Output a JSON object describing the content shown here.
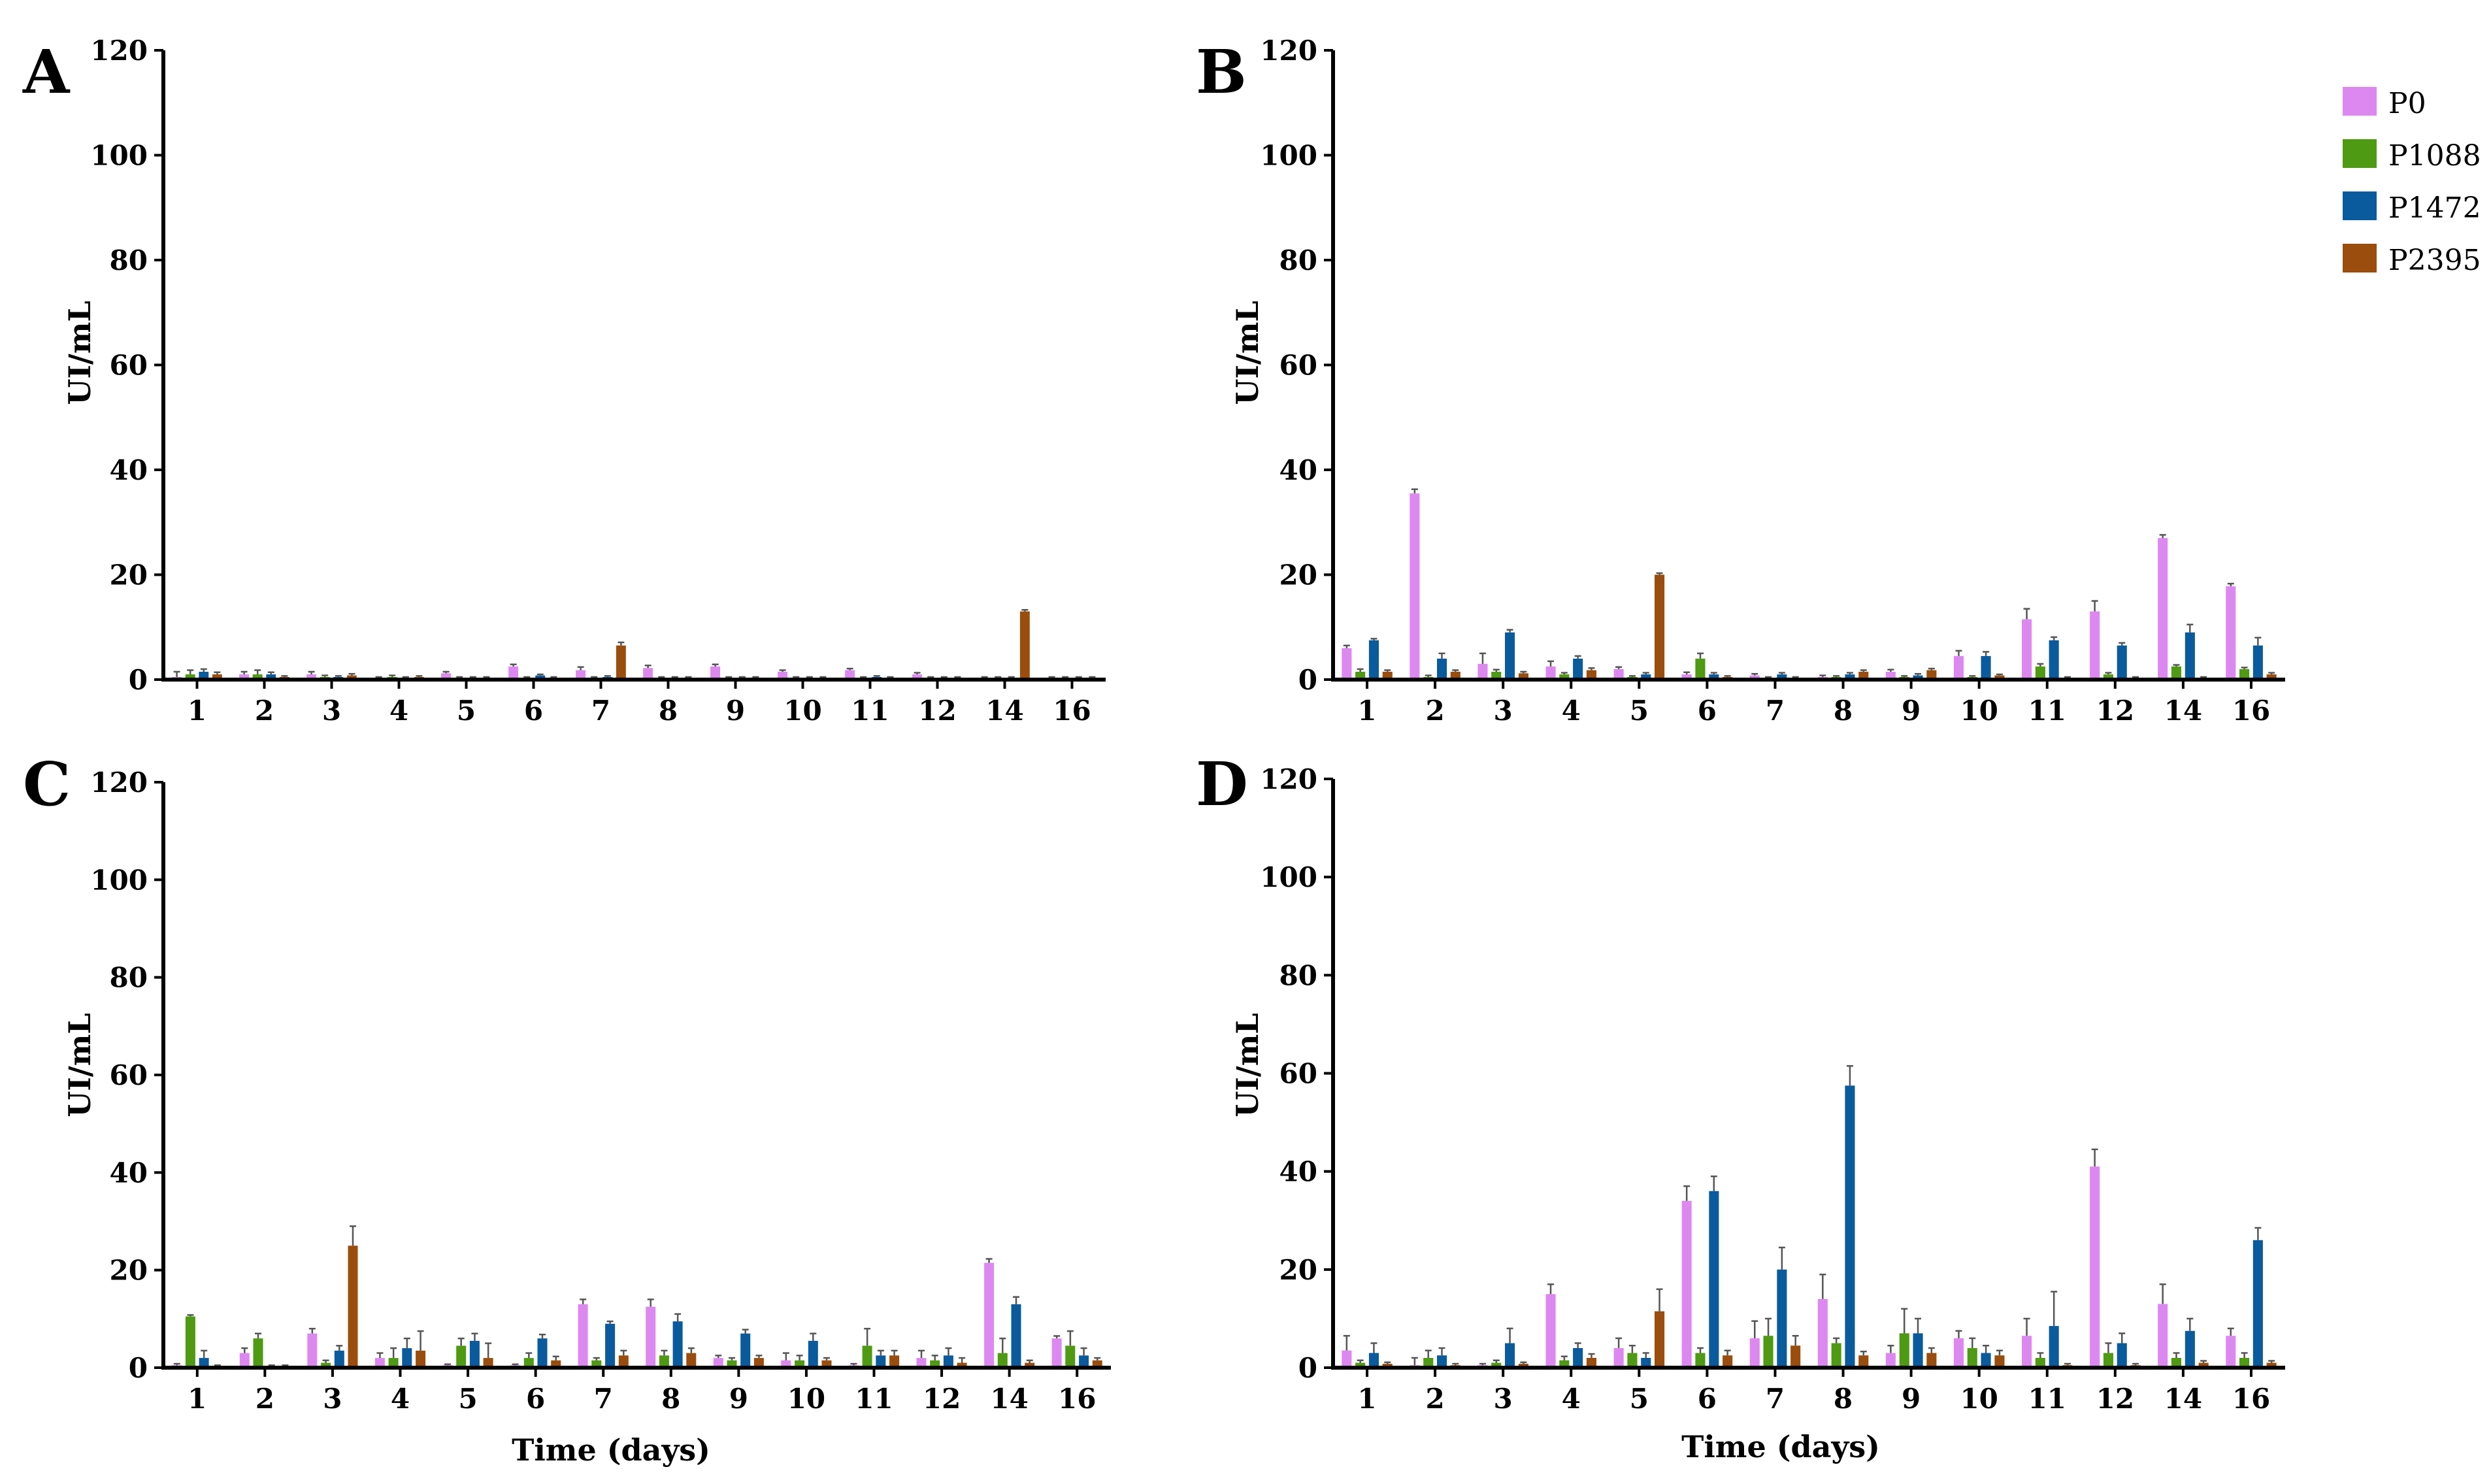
{
  "colors": {
    "P0": "#dd88f0",
    "P1088": "#4e9a12",
    "P1472": "#0a5a9e",
    "P2395": "#9a4d0c"
  },
  "chart_data": [
    {
      "type": "bar",
      "panel": "A",
      "ylabel": "UI/mL",
      "xlabel": "",
      "ylim": [
        0,
        120
      ],
      "yticks": [
        0,
        20,
        40,
        60,
        80,
        100,
        120
      ],
      "categories": [
        "1",
        "2",
        "3",
        "4",
        "5",
        "6",
        "7",
        "8",
        "9",
        "10",
        "11",
        "12",
        "14",
        "16"
      ],
      "series": [
        {
          "name": "P0",
          "values": [
            0.5,
            1,
            1,
            0.3,
            1.2,
            2.5,
            1.8,
            2.2,
            2.5,
            1.5,
            1.8,
            1,
            0.3,
            0.3
          ],
          "errors": [
            1,
            0.5,
            0.5,
            0.2,
            0.3,
            0.4,
            0.6,
            0.5,
            0.4,
            0.3,
            0.3,
            0.3,
            0.2,
            0.2
          ]
        },
        {
          "name": "P1088",
          "values": [
            1,
            1,
            0.5,
            0.5,
            0.3,
            0.3,
            0.3,
            0.3,
            0.3,
            0.3,
            0.3,
            0.3,
            0.3,
            0.3
          ],
          "errors": [
            0.8,
            0.8,
            0.3,
            0.3,
            0.2,
            0.2,
            0.2,
            0.2,
            0.2,
            0.2,
            0.2,
            0.2,
            0.2,
            0.2
          ]
        },
        {
          "name": "P1472",
          "values": [
            1.5,
            1,
            0.5,
            0.3,
            0.3,
            0.8,
            0.5,
            0.3,
            0.3,
            0.3,
            0.5,
            0.3,
            0.3,
            0.3
          ],
          "errors": [
            0.5,
            0.4,
            0.2,
            0.2,
            0.2,
            0.2,
            0.2,
            0.2,
            0.2,
            0.2,
            0.2,
            0.2,
            0.2,
            0.2
          ]
        },
        {
          "name": "P2395",
          "values": [
            1,
            0.5,
            0.8,
            0.5,
            0.3,
            0.3,
            6.5,
            0.3,
            0.3,
            0.3,
            0.3,
            0.3,
            13,
            0.3
          ],
          "errors": [
            0.4,
            0.2,
            0.3,
            0.2,
            0.2,
            0.2,
            0.6,
            0.2,
            0.2,
            0.2,
            0.2,
            0.2,
            0.3,
            0.2
          ]
        }
      ]
    },
    {
      "type": "bar",
      "panel": "B",
      "ylabel": "UI/mL",
      "xlabel": "",
      "ylim": [
        0,
        120
      ],
      "yticks": [
        0,
        20,
        40,
        60,
        80,
        100,
        120
      ],
      "categories": [
        "1",
        "2",
        "3",
        "4",
        "5",
        "6",
        "7",
        "8",
        "9",
        "10",
        "11",
        "12",
        "14",
        "16"
      ],
      "series": [
        {
          "name": "P0",
          "values": [
            6,
            35.5,
            3,
            2.5,
            2,
            1,
            0.8,
            0.5,
            1.5,
            4.5,
            11.5,
            13,
            27,
            17.8
          ],
          "errors": [
            0.5,
            0.8,
            2,
            1,
            0.4,
            0.4,
            0.3,
            0.3,
            0.4,
            1,
            2,
            2,
            0.6,
            0.5
          ]
        },
        {
          "name": "P1088",
          "values": [
            1.5,
            0.5,
            1.5,
            1,
            0.5,
            4,
            0.3,
            0.5,
            0.5,
            0.5,
            2.5,
            1,
            2.5,
            2
          ],
          "errors": [
            0.5,
            0.3,
            0.4,
            0.3,
            0.2,
            1,
            0.2,
            0.2,
            0.2,
            0.2,
            0.5,
            0.3,
            0.3,
            0.3
          ]
        },
        {
          "name": "P1472",
          "values": [
            7.5,
            4,
            9,
            4,
            1,
            1,
            1,
            1,
            0.8,
            4.5,
            7.5,
            6.5,
            9,
            6.5
          ],
          "errors": [
            0.3,
            1,
            0.5,
            0.5,
            0.3,
            0.3,
            0.3,
            0.3,
            0.3,
            0.8,
            0.6,
            0.5,
            1.5,
            1.5
          ]
        },
        {
          "name": "P2395",
          "values": [
            1.5,
            1.5,
            1.2,
            1.8,
            20,
            0.5,
            0.3,
            1.5,
            1.8,
            0.8,
            0.3,
            0.3,
            0.3,
            1
          ],
          "errors": [
            0.3,
            0.3,
            0.3,
            0.4,
            0.3,
            0.2,
            0.2,
            0.3,
            0.3,
            0.2,
            0.2,
            0.2,
            0.2,
            0.3
          ]
        }
      ]
    },
    {
      "type": "bar",
      "panel": "C",
      "ylabel": "UI/mL",
      "xlabel": "Time (days)",
      "ylim": [
        0,
        120
      ],
      "yticks": [
        0,
        20,
        40,
        60,
        80,
        100,
        120
      ],
      "categories": [
        "1",
        "2",
        "3",
        "4",
        "5",
        "6",
        "7",
        "8",
        "9",
        "10",
        "11",
        "12",
        "14",
        "16"
      ],
      "series": [
        {
          "name": "P0",
          "values": [
            0.5,
            3,
            7,
            2,
            0.5,
            0.5,
            13,
            12.5,
            2,
            1.5,
            0.5,
            2,
            21.5,
            6
          ],
          "errors": [
            0.3,
            1,
            1,
            1,
            0.2,
            0.2,
            1,
            1.5,
            0.5,
            1.5,
            0.3,
            1.5,
            0.8,
            0.5
          ]
        },
        {
          "name": "P1088",
          "values": [
            10.5,
            6,
            1,
            2,
            4.5,
            2,
            1.5,
            2.5,
            1.5,
            1.5,
            4.5,
            1.5,
            3,
            4.5
          ],
          "errors": [
            0.3,
            1,
            0.5,
            2,
            1.5,
            1,
            0.5,
            1,
            0.5,
            1,
            3.5,
            1,
            3,
            3
          ]
        },
        {
          "name": "P1472",
          "values": [
            2,
            0.3,
            3.5,
            4,
            5.5,
            6,
            9,
            9.5,
            7,
            5.5,
            2.5,
            2.5,
            13,
            2.5
          ],
          "errors": [
            1.5,
            0.2,
            1,
            2,
            1.5,
            0.8,
            0.5,
            1.5,
            0.8,
            1.5,
            1,
            1.5,
            1.5,
            1.5
          ]
        },
        {
          "name": "P2395",
          "values": [
            0.3,
            0.3,
            25,
            3.5,
            2,
            1.5,
            2.5,
            3,
            2,
            1.5,
            2.5,
            1,
            1,
            1.5
          ],
          "errors": [
            0.2,
            0.2,
            4,
            4,
            3,
            0.8,
            1,
            1,
            0.5,
            0.5,
            1,
            1,
            0.5,
            0.5
          ]
        }
      ]
    },
    {
      "type": "bar",
      "panel": "D",
      "ylabel": "UI/mL",
      "xlabel": "Time (days)",
      "ylim": [
        0,
        120
      ],
      "yticks": [
        0,
        20,
        40,
        60,
        80,
        100,
        120
      ],
      "categories": [
        "1",
        "2",
        "3",
        "4",
        "5",
        "6",
        "7",
        "8",
        "9",
        "10",
        "11",
        "12",
        "14",
        "16"
      ],
      "series": [
        {
          "name": "P0",
          "values": [
            3.5,
            0.5,
            0.5,
            15,
            4,
            34,
            6,
            14,
            3,
            6,
            6.5,
            41,
            13,
            6.5
          ],
          "errors": [
            3,
            1.5,
            0.3,
            2,
            2,
            3,
            3.5,
            5,
            1.5,
            1.5,
            3.5,
            3.5,
            4,
            1.5
          ]
        },
        {
          "name": "P1088",
          "values": [
            1,
            2,
            1,
            1.5,
            3,
            3,
            6.5,
            5,
            7,
            4,
            2,
            3,
            2,
            2
          ],
          "errors": [
            0.5,
            1.5,
            0.5,
            0.8,
            1.5,
            1,
            3.5,
            1,
            5,
            2,
            1,
            2,
            1,
            1
          ]
        },
        {
          "name": "P1472",
          "values": [
            3,
            2.5,
            5,
            4,
            2,
            36,
            20,
            57.5,
            7,
            3,
            8.5,
            5,
            7.5,
            26
          ],
          "errors": [
            2,
            1.5,
            3,
            1,
            1,
            3,
            4.5,
            4,
            3,
            1.5,
            7,
            2,
            2.5,
            2.5
          ]
        },
        {
          "name": "P2395",
          "values": [
            0.8,
            0.5,
            0.8,
            2,
            11.5,
            2.5,
            4.5,
            2.5,
            3,
            2.5,
            0.5,
            0.5,
            1,
            1
          ],
          "errors": [
            0.3,
            0.3,
            0.3,
            0.8,
            4.5,
            1,
            2,
            0.8,
            1,
            1,
            0.3,
            0.3,
            0.4,
            0.4
          ]
        }
      ]
    }
  ]
}
